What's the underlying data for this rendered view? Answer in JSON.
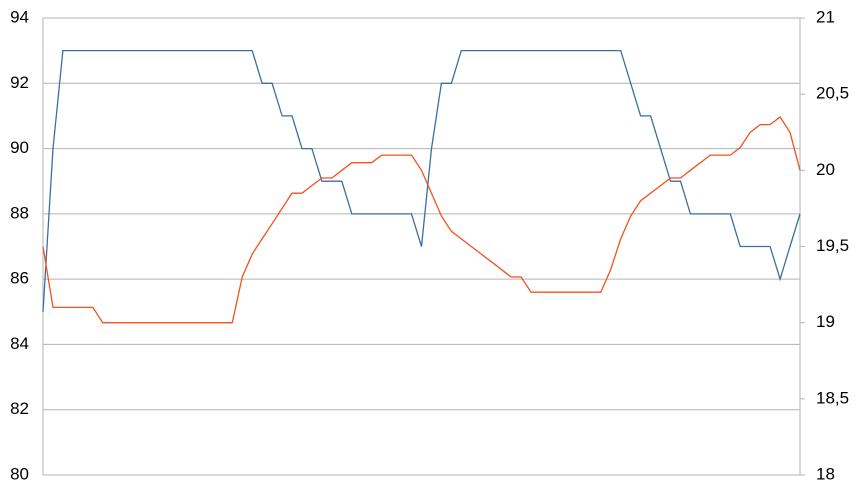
{
  "chart_data": {
    "type": "line",
    "ylim": [
      80,
      94
    ],
    "yticks": [
      80,
      82,
      84,
      86,
      88,
      90,
      92,
      94
    ],
    "y2lim": [
      18,
      21
    ],
    "y2ticks": [
      18,
      {
        "value": 18.5,
        "label": "18,5"
      },
      19,
      {
        "value": 19.5,
        "label": "19,5"
      },
      20,
      {
        "value": 20.5,
        "label": "20,5"
      },
      21
    ],
    "grid": true,
    "series": [
      {
        "color": "#3a6ea5",
        "values": [
          85,
          90,
          93,
          93,
          93,
          93,
          93,
          93,
          93,
          93,
          93,
          93,
          93,
          93,
          93,
          93,
          93,
          93,
          93,
          93,
          93,
          93,
          92,
          92,
          91,
          91,
          90,
          90,
          89,
          89,
          89,
          88,
          88,
          88,
          88,
          88,
          88,
          88,
          87,
          90,
          92,
          92,
          93,
          93,
          93,
          93,
          93,
          93,
          93,
          93,
          93,
          93,
          93,
          93,
          93,
          93,
          93,
          93,
          93,
          92,
          91,
          91,
          90,
          89,
          89,
          88,
          88,
          88,
          88,
          88,
          87,
          87,
          87,
          87,
          86,
          87,
          88
        ]
      },
      {
        "color": "#f4511e",
        "axis": "y2",
        "values": [
          19.5,
          19.1,
          19.1,
          19.1,
          19.1,
          19.1,
          19.0,
          19.0,
          19.0,
          19.0,
          19.0,
          19.0,
          19.0,
          19.0,
          19.0,
          19.0,
          19.0,
          19.0,
          19.0,
          19.0,
          19.3,
          19.45,
          19.55,
          19.65,
          19.75,
          19.85,
          19.85,
          19.9,
          19.95,
          19.95,
          20.0,
          20.05,
          20.05,
          20.05,
          20.1,
          20.1,
          20.1,
          20.1,
          20.0,
          19.85,
          19.7,
          19.6,
          19.55,
          19.5,
          19.45,
          19.4,
          19.35,
          19.3,
          19.3,
          19.2,
          19.2,
          19.2,
          19.2,
          19.2,
          19.2,
          19.2,
          19.2,
          19.35,
          19.55,
          19.7,
          19.8,
          19.85,
          19.9,
          19.95,
          19.95,
          20.0,
          20.05,
          20.1,
          20.1,
          20.1,
          20.15,
          20.25,
          20.3,
          20.3,
          20.35,
          20.25,
          20.0
        ]
      }
    ]
  }
}
